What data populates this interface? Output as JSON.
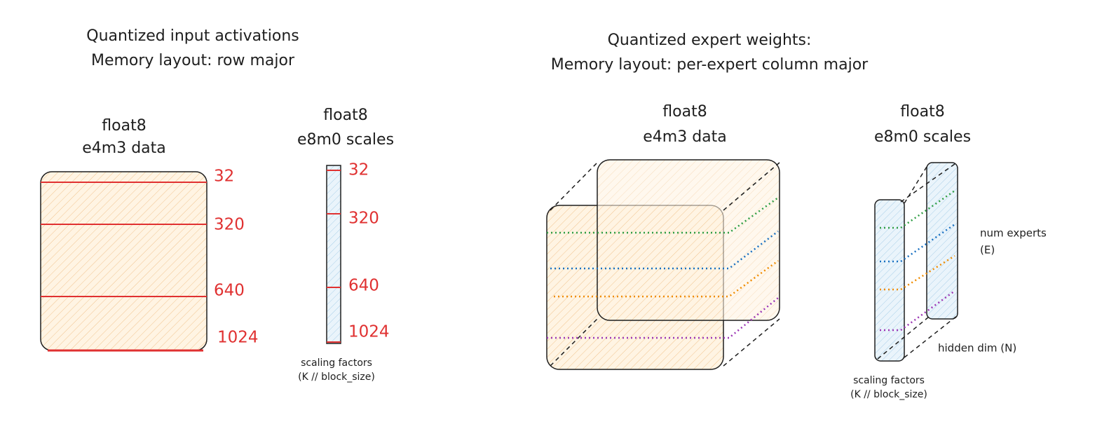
{
  "left": {
    "title": [
      "Quantized input activations",
      "Memory layout: row major"
    ],
    "data_block": {
      "label": [
        "float8",
        "e4m3 data"
      ],
      "row_labels": [
        32,
        320,
        640,
        1024
      ]
    },
    "scales_block": {
      "label": [
        "float8",
        "e8m0 scales"
      ],
      "row_labels": [
        32,
        320,
        640,
        1024
      ],
      "note": [
        "scaling factors",
        "(K // block_size)"
      ]
    }
  },
  "right": {
    "title": [
      "Quantized expert weights:",
      "Memory layout: per-expert column major"
    ],
    "data_block": {
      "label": [
        "float8",
        "e4m3 data"
      ]
    },
    "scales_block": {
      "label": [
        "float8",
        "e8m0 scales"
      ],
      "note": [
        "scaling factors",
        "(K // block_size)"
      ]
    },
    "annotations": {
      "experts": [
        "num experts",
        "(E)"
      ],
      "hidden": "hidden dim (N)"
    }
  }
}
